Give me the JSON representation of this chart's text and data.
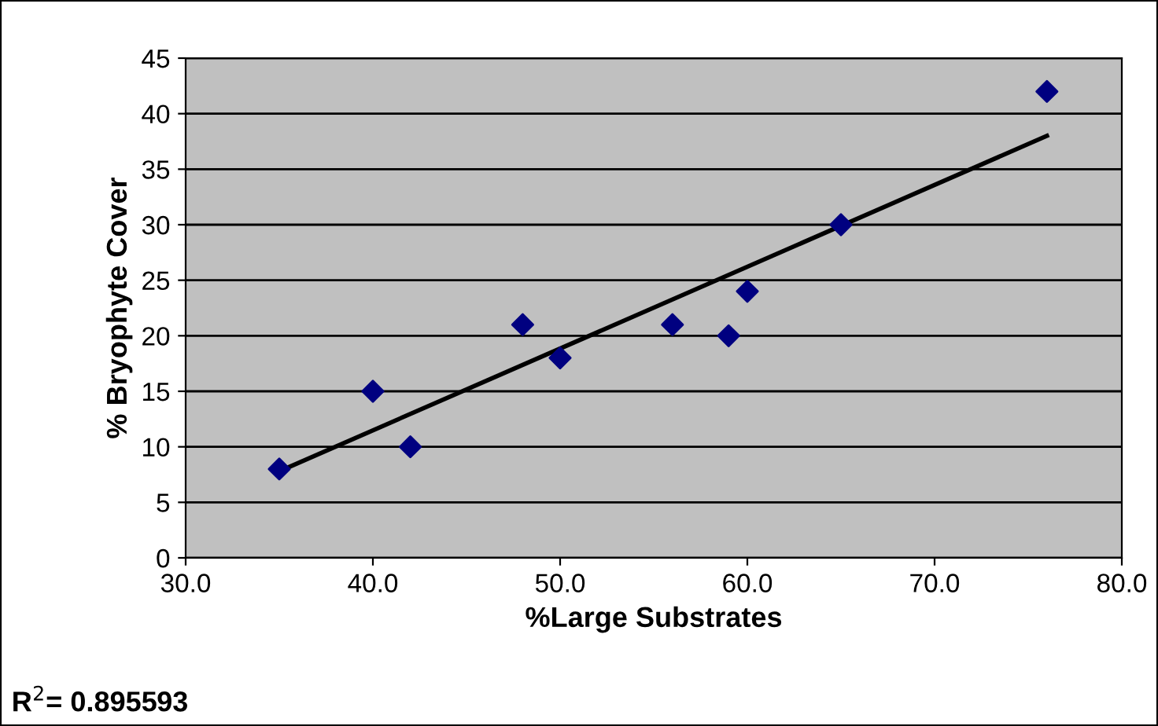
{
  "chart_data": {
    "type": "scatter",
    "xlabel": "%Large Substrates",
    "ylabel": "% Bryophyte Cover",
    "xlim": [
      30,
      80
    ],
    "ylim": [
      0,
      45
    ],
    "xticks": [
      {
        "value": 30,
        "label": "30.0"
      },
      {
        "value": 40,
        "label": "40.0"
      },
      {
        "value": 50,
        "label": "50.0"
      },
      {
        "value": 60,
        "label": "60.0"
      },
      {
        "value": 70,
        "label": "70.0"
      },
      {
        "value": 80,
        "label": "80.0"
      }
    ],
    "yticks": [
      0,
      5,
      10,
      15,
      20,
      25,
      30,
      35,
      40,
      45
    ],
    "grid": "y",
    "series": [
      {
        "marker": "diamond",
        "color": "#000080",
        "x": [
          35,
          40,
          42,
          48,
          50,
          56,
          59,
          60,
          65,
          76
        ],
        "values": [
          8,
          15,
          10,
          21,
          18,
          21,
          20,
          24,
          30,
          42
        ]
      },
      {
        "type": "line",
        "color": "#000000",
        "x": [
          35,
          76
        ],
        "values": [
          7.8,
          38
        ]
      }
    ],
    "annotations": [
      "R$^{2}$= 0.895593"
    ]
  }
}
